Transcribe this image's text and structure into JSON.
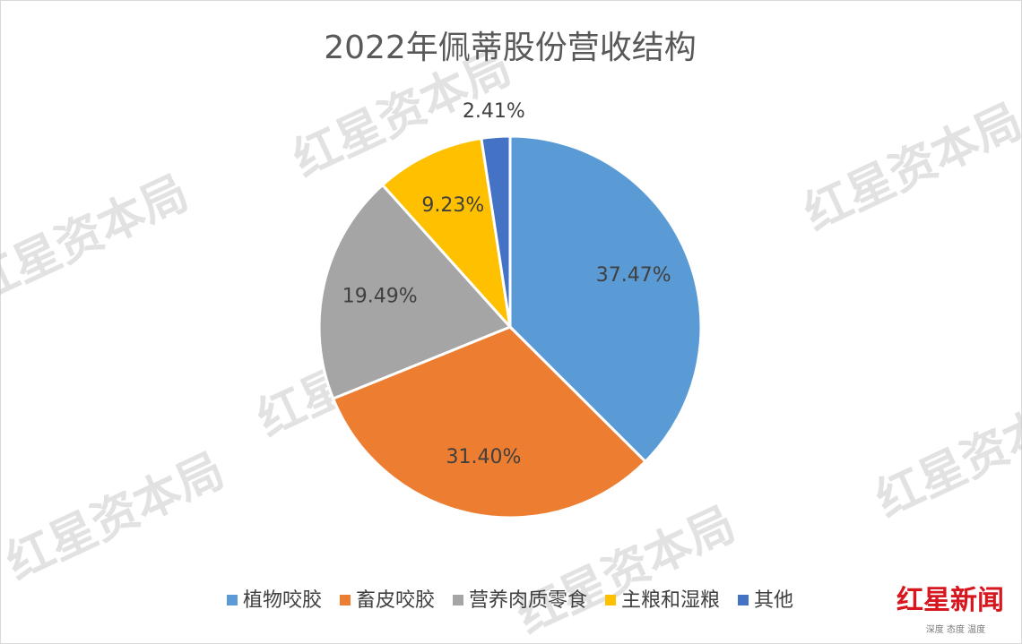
{
  "chart_data": {
    "type": "pie",
    "title": "2022年佩蒂股份营收结构",
    "categories": [
      "植物咬胶",
      "畜皮咬胶",
      "营养肉质零食",
      "主粮和湿粮",
      "其他"
    ],
    "values": [
      37.47,
      31.4,
      19.49,
      9.23,
      2.41
    ],
    "value_labels": [
      "37.47%",
      "31.40%",
      "19.49%",
      "9.23%",
      "2.41%"
    ],
    "colors": [
      "#5b9bd5",
      "#ed7d31",
      "#a5a5a5",
      "#ffc000",
      "#4472c4"
    ],
    "legend": "bottom"
  },
  "watermark": "红星资本局",
  "logo": {
    "name": "红星新闻",
    "slogan": "深度 态度 温度"
  }
}
